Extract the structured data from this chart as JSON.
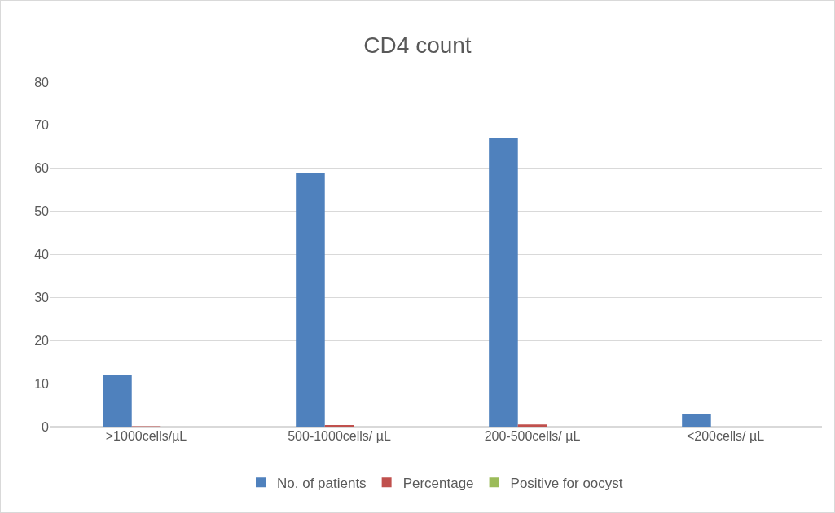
{
  "chart_data": {
    "type": "bar",
    "title": "CD4 count",
    "categories": [
      ">1000cells/µL",
      "500-1000cells/ µL",
      "200-500cells/ µL",
      "<200cells/ µL"
    ],
    "series": [
      {
        "name": "No. of patients",
        "color": "#4f81bd",
        "values": [
          12,
          59,
          67,
          3
        ]
      },
      {
        "name": "Percentage",
        "color": "#c0504d",
        "values": [
          0.1,
          0.4,
          0.5,
          0
        ]
      },
      {
        "name": "Positive for oocyst",
        "color": "#9bbb59",
        "values": [
          0,
          0,
          0,
          0
        ]
      }
    ],
    "ylim": [
      0,
      80
    ],
    "yticks": [
      0,
      10,
      20,
      30,
      40,
      50,
      60,
      70,
      80
    ],
    "grid": "y",
    "legend": "bottom"
  }
}
